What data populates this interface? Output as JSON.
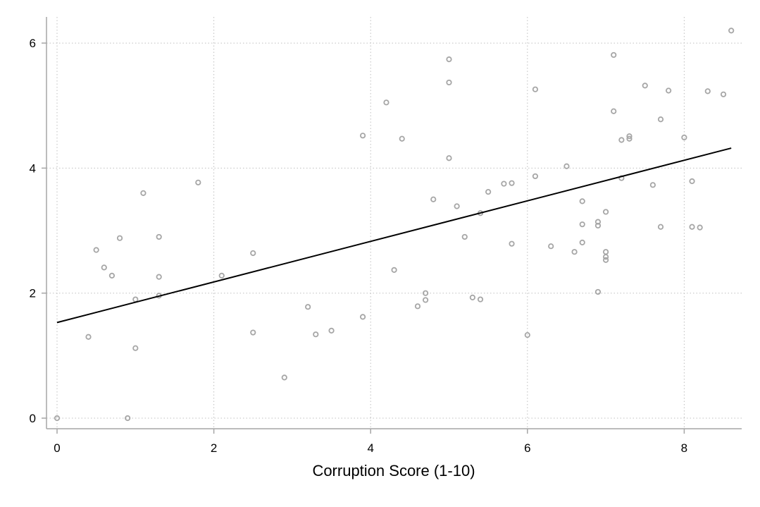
{
  "chart_data": {
    "type": "scatter",
    "title": "",
    "xlabel": "Corruption Score (1-10)",
    "ylabel": "",
    "xlim": [
      0,
      8.6
    ],
    "ylim": [
      0,
      6.2
    ],
    "xticks": [
      "0",
      "2",
      "4",
      "6",
      "8"
    ],
    "yticks": [
      "0",
      "2",
      "4",
      "6"
    ],
    "grid": true,
    "legend": "none",
    "colors": {
      "points": "#a6a6a6",
      "fit_line": "#000000",
      "grid": "#bfbfbf",
      "axis": "#a6a6a6"
    },
    "fit_line": {
      "x": [
        0,
        8.6
      ],
      "y": [
        1.53,
        4.32
      ]
    },
    "points": [
      [
        0,
        0
      ],
      [
        0.4,
        1.3
      ],
      [
        0.5,
        2.69
      ],
      [
        0.6,
        2.41
      ],
      [
        0.7,
        2.28
      ],
      [
        0.8,
        2.88
      ],
      [
        0.9,
        0
      ],
      [
        1.0,
        1.9
      ],
      [
        1.0,
        1.12
      ],
      [
        1.1,
        3.6
      ],
      [
        1.3,
        2.9
      ],
      [
        1.3,
        2.26
      ],
      [
        1.3,
        1.96
      ],
      [
        1.8,
        3.77
      ],
      [
        2.1,
        2.28
      ],
      [
        2.5,
        2.64
      ],
      [
        2.5,
        1.37
      ],
      [
        2.9,
        0.65
      ],
      [
        3.2,
        1.78
      ],
      [
        3.3,
        1.34
      ],
      [
        3.5,
        1.4
      ],
      [
        3.9,
        4.52
      ],
      [
        3.9,
        1.62
      ],
      [
        4.2,
        5.05
      ],
      [
        4.3,
        2.37
      ],
      [
        4.4,
        4.47
      ],
      [
        4.6,
        1.79
      ],
      [
        4.7,
        2.0
      ],
      [
        4.7,
        1.89
      ],
      [
        4.8,
        3.5
      ],
      [
        5.0,
        5.74
      ],
      [
        5.0,
        5.37
      ],
      [
        5.0,
        4.16
      ],
      [
        5.1,
        3.39
      ],
      [
        5.2,
        2.9
      ],
      [
        5.3,
        1.93
      ],
      [
        5.4,
        3.28
      ],
      [
        5.4,
        1.9
      ],
      [
        5.5,
        3.62
      ],
      [
        5.7,
        3.75
      ],
      [
        5.8,
        3.76
      ],
      [
        5.8,
        2.79
      ],
      [
        6.0,
        1.33
      ],
      [
        6.1,
        5.26
      ],
      [
        6.1,
        3.87
      ],
      [
        6.3,
        2.75
      ],
      [
        6.5,
        4.03
      ],
      [
        6.6,
        2.66
      ],
      [
        6.7,
        3.47
      ],
      [
        6.7,
        3.1
      ],
      [
        6.7,
        2.81
      ],
      [
        6.9,
        3.14
      ],
      [
        6.9,
        3.08
      ],
      [
        6.9,
        2.02
      ],
      [
        7.0,
        3.3
      ],
      [
        7.0,
        2.66
      ],
      [
        7.0,
        2.58
      ],
      [
        7.0,
        2.53
      ],
      [
        7.1,
        5.81
      ],
      [
        7.1,
        4.91
      ],
      [
        7.2,
        4.45
      ],
      [
        7.2,
        3.84
      ],
      [
        7.3,
        4.51
      ],
      [
        7.3,
        4.47
      ],
      [
        7.5,
        5.32
      ],
      [
        7.6,
        3.73
      ],
      [
        7.7,
        4.78
      ],
      [
        7.7,
        3.06
      ],
      [
        7.8,
        5.24
      ],
      [
        8.0,
        4.49
      ],
      [
        8.1,
        3.79
      ],
      [
        8.1,
        3.06
      ],
      [
        8.2,
        3.05
      ],
      [
        8.3,
        5.23
      ],
      [
        8.5,
        5.18
      ],
      [
        8.6,
        6.2
      ]
    ]
  }
}
